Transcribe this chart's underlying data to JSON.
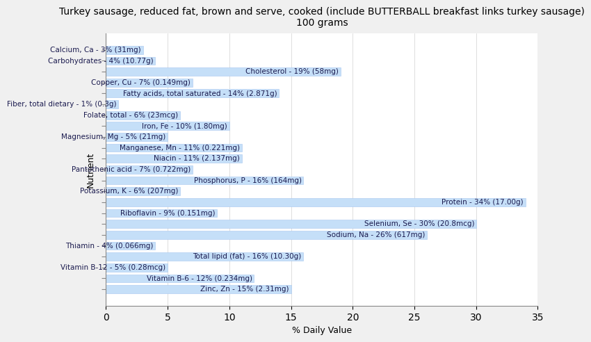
{
  "title": "Turkey sausage, reduced fat, brown and serve, cooked (include BUTTERBALL breakfast links turkey sausage)\n100 grams",
  "xlabel": "% Daily Value",
  "ylabel": "Nutrient",
  "nutrients": [
    "Calcium, Ca - 3% (31mg)",
    "Carbohydrates - 4% (10.77g)",
    "Cholesterol - 19% (58mg)",
    "Copper, Cu - 7% (0.149mg)",
    "Fatty acids, total saturated - 14% (2.871g)",
    "Fiber, total dietary - 1% (0.3g)",
    "Folate, total - 6% (23mcg)",
    "Iron, Fe - 10% (1.80mg)",
    "Magnesium, Mg - 5% (21mg)",
    "Manganese, Mn - 11% (0.221mg)",
    "Niacin - 11% (2.137mg)",
    "Pantothenic acid - 7% (0.722mg)",
    "Phosphorus, P - 16% (164mg)",
    "Potassium, K - 6% (207mg)",
    "Protein - 34% (17.00g)",
    "Riboflavin - 9% (0.151mg)",
    "Selenium, Se - 30% (20.8mcg)",
    "Sodium, Na - 26% (617mg)",
    "Thiamin - 4% (0.066mg)",
    "Total lipid (fat) - 16% (10.30g)",
    "Vitamin B-12 - 5% (0.28mcg)",
    "Vitamin B-6 - 12% (0.234mg)",
    "Zinc, Zn - 15% (2.31mg)"
  ],
  "values": [
    3,
    4,
    19,
    7,
    14,
    1,
    6,
    10,
    5,
    11,
    11,
    7,
    16,
    6,
    34,
    9,
    30,
    26,
    4,
    16,
    5,
    12,
    15
  ],
  "bar_color": "#c5dff8",
  "bar_edge_color": "#a8c8f0",
  "background_color": "#f0f0f0",
  "plot_background_color": "#ffffff",
  "title_fontsize": 10,
  "label_fontsize": 7.5,
  "axis_label_fontsize": 9,
  "text_color": "#1a1a4e",
  "xlim": [
    0,
    35
  ],
  "xticks": [
    0,
    5,
    10,
    15,
    20,
    25,
    30,
    35
  ]
}
